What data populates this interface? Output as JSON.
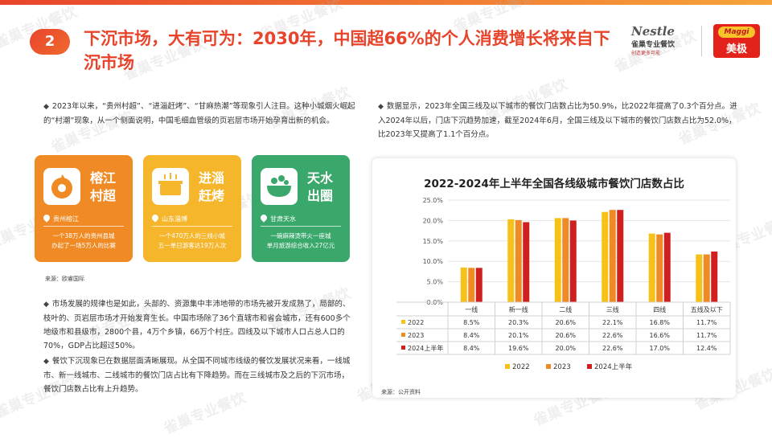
{
  "section_number": "2",
  "title": "下沉市场，大有可为：2030年，中国超66%的个人消费增长将来自下沉市场",
  "logos": {
    "nestle_name": "Nestle",
    "nestle_sub": "雀巢专业餐饮",
    "nestle_tag": "创造更多可能",
    "maggi_name": "Maggi",
    "maggi_cn": "美极"
  },
  "watermark": "雀巢专业餐饮",
  "left_top_paragraph": "2023年以来，“贵州村超”、“进淄赶烤”、“甘麻热潮”等现象引人注目。这种小城烟火崛起的“村潮”现象，从一个侧面说明，中国毛细血管级的页岩层市场开始孕育出新的机会。",
  "cards": [
    {
      "title_line1": "榕江",
      "title_line2": "村超",
      "location": "贵州榕江",
      "desc_line1": "一个38万人的贵州县城",
      "desc_line2": "办起了一场5万人的比赛",
      "color": "#f08a24",
      "icon": "football-icon"
    },
    {
      "title_line1": "进淄",
      "title_line2": "赶烤",
      "location": "山东淄博",
      "desc_line1": "一个470万人的三线小城",
      "desc_line2": "五一单日游客达19万人次",
      "color": "#f6b62c",
      "icon": "grill-icon"
    },
    {
      "title_line1": "天水",
      "title_line2": "出圈",
      "location": "甘肃天水",
      "desc_line1": "一碗麻辣烫带火一座城",
      "desc_line2": "单月旅游综合收入27亿元",
      "color": "#3aa86b",
      "icon": "bowl-icon"
    }
  ],
  "left_source": "来源：欧睿国际",
  "left_bottom_paragraph_1": "市场发展的规律也是如此，头部的、资源集中丰沛地带的市场先被开发成熟了，局部的、枝叶的、页岩层市场才开始发育生长。中国市场除了36个直辖市和省会城市，还有600多个地级市和县级市，2800个县，4万个乡镇，66万个村庄。四线及以下城市人口占总人口的70%，GDP占比超过50%。",
  "left_bottom_paragraph_2": "餐饮下沉现象已在数据层面清晰展现。从全国不同城市线级的餐饮发展状况来看，一线城市、新一线城市、二线城市的餐饮门店占比有下降趋势。而在三线城市及之后的下沉市场，餐饮门店数占比有上升趋势。",
  "right_paragraph": "数据显示，2023年全国三线及以下城市的餐饮门店数占比为50.9%，比2022年提高了0.3个百分点。进入2024年以后，门店下沉趋势加速，截至2024年6月，全国三线及以下城市的餐饮门店数占比为52.0%，比2023年又提高了1.1个百分点。",
  "right_source": "来源：公开资料",
  "chart_data": {
    "type": "bar",
    "title": "2022-2024年上半年全国各线级城市餐饮门店数占比",
    "categories": [
      "一线",
      "新一线",
      "二线",
      "三线",
      "四线",
      "五线及以下"
    ],
    "ylim": [
      0,
      25
    ],
    "yticks": [
      "0.0%",
      "5.0%",
      "10.0%",
      "15.0%",
      "20.0%",
      "25.0%"
    ],
    "grid": true,
    "legend_position": "bottom",
    "series": [
      {
        "name": "2022",
        "color": "#f6c21a",
        "values": [
          8.5,
          20.3,
          20.6,
          22.1,
          16.8,
          11.7
        ],
        "labels": [
          "8.5%",
          "20.3%",
          "20.6%",
          "22.1%",
          "16.8%",
          "11.7%"
        ]
      },
      {
        "name": "2023",
        "color": "#f08a24",
        "values": [
          8.4,
          20.1,
          20.6,
          22.6,
          16.6,
          11.7
        ],
        "labels": [
          "8.4%",
          "20.1%",
          "20.6%",
          "22.6%",
          "16.6%",
          "11.7%"
        ]
      },
      {
        "name": "2024上半年",
        "color": "#cf1f1f",
        "values": [
          8.4,
          19.6,
          20.0,
          22.6,
          17.0,
          12.4
        ],
        "labels": [
          "8.4%",
          "19.6%",
          "20.0%",
          "22.6%",
          "17.0%",
          "12.4%"
        ]
      }
    ]
  }
}
